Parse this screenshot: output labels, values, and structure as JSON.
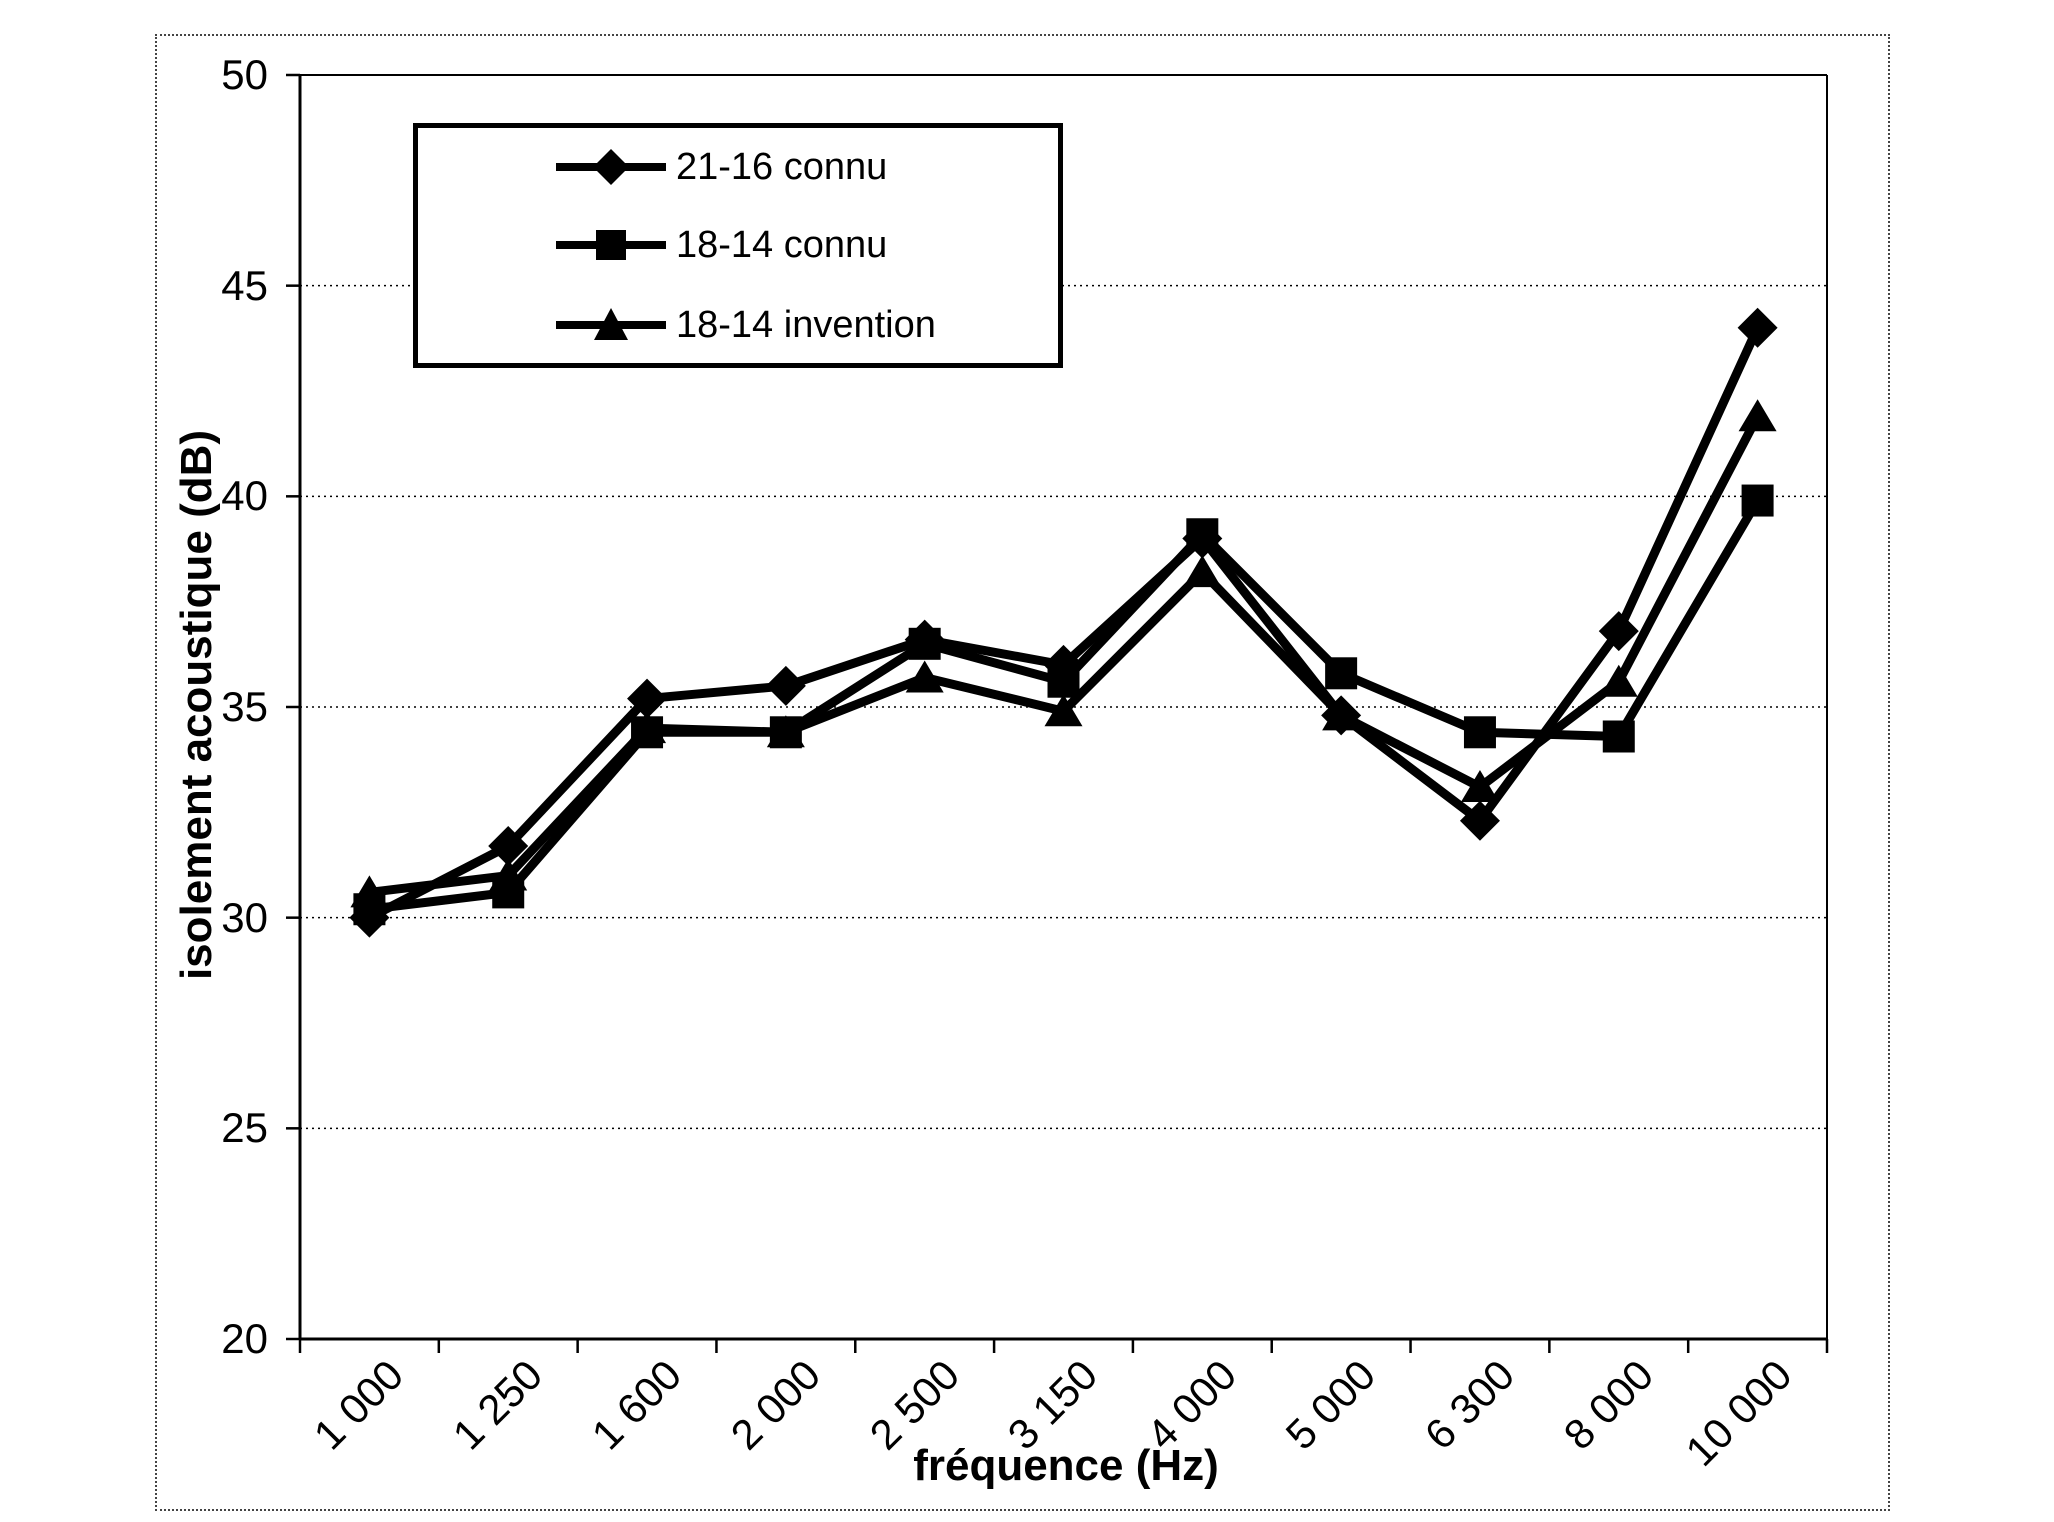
{
  "chart_data": {
    "type": "line",
    "title": "",
    "xlabel": "fréquence (Hz)",
    "ylabel": "isolement acoustique (dB)",
    "categories": [
      "1 000",
      "1 250",
      "1 600",
      "2 000",
      "2 500",
      "3 150",
      "4 000",
      "5 000",
      "6 300",
      "8 000",
      "10 000"
    ],
    "y_ticks": [
      20,
      25,
      30,
      35,
      40,
      45,
      50
    ],
    "ylim": [
      20,
      50
    ],
    "grid": "horizontal-dotted",
    "legend_position": "top-left-inside",
    "line_color": "#000000",
    "series": [
      {
        "name": "21-16 connu",
        "marker": "diamond",
        "values": [
          30.0,
          31.7,
          35.2,
          35.5,
          36.6,
          36.0,
          39.0,
          34.8,
          32.3,
          36.8,
          44.0
        ]
      },
      {
        "name": "18-14 connu",
        "marker": "square",
        "values": [
          30.2,
          30.6,
          34.4,
          34.4,
          36.5,
          35.6,
          39.1,
          35.8,
          34.4,
          34.3,
          39.9
        ]
      },
      {
        "name": "18-14 invention",
        "marker": "triangle",
        "values": [
          30.6,
          31.0,
          34.5,
          34.4,
          35.7,
          34.9,
          38.2,
          34.8,
          33.1,
          35.6,
          41.9
        ]
      }
    ]
  }
}
